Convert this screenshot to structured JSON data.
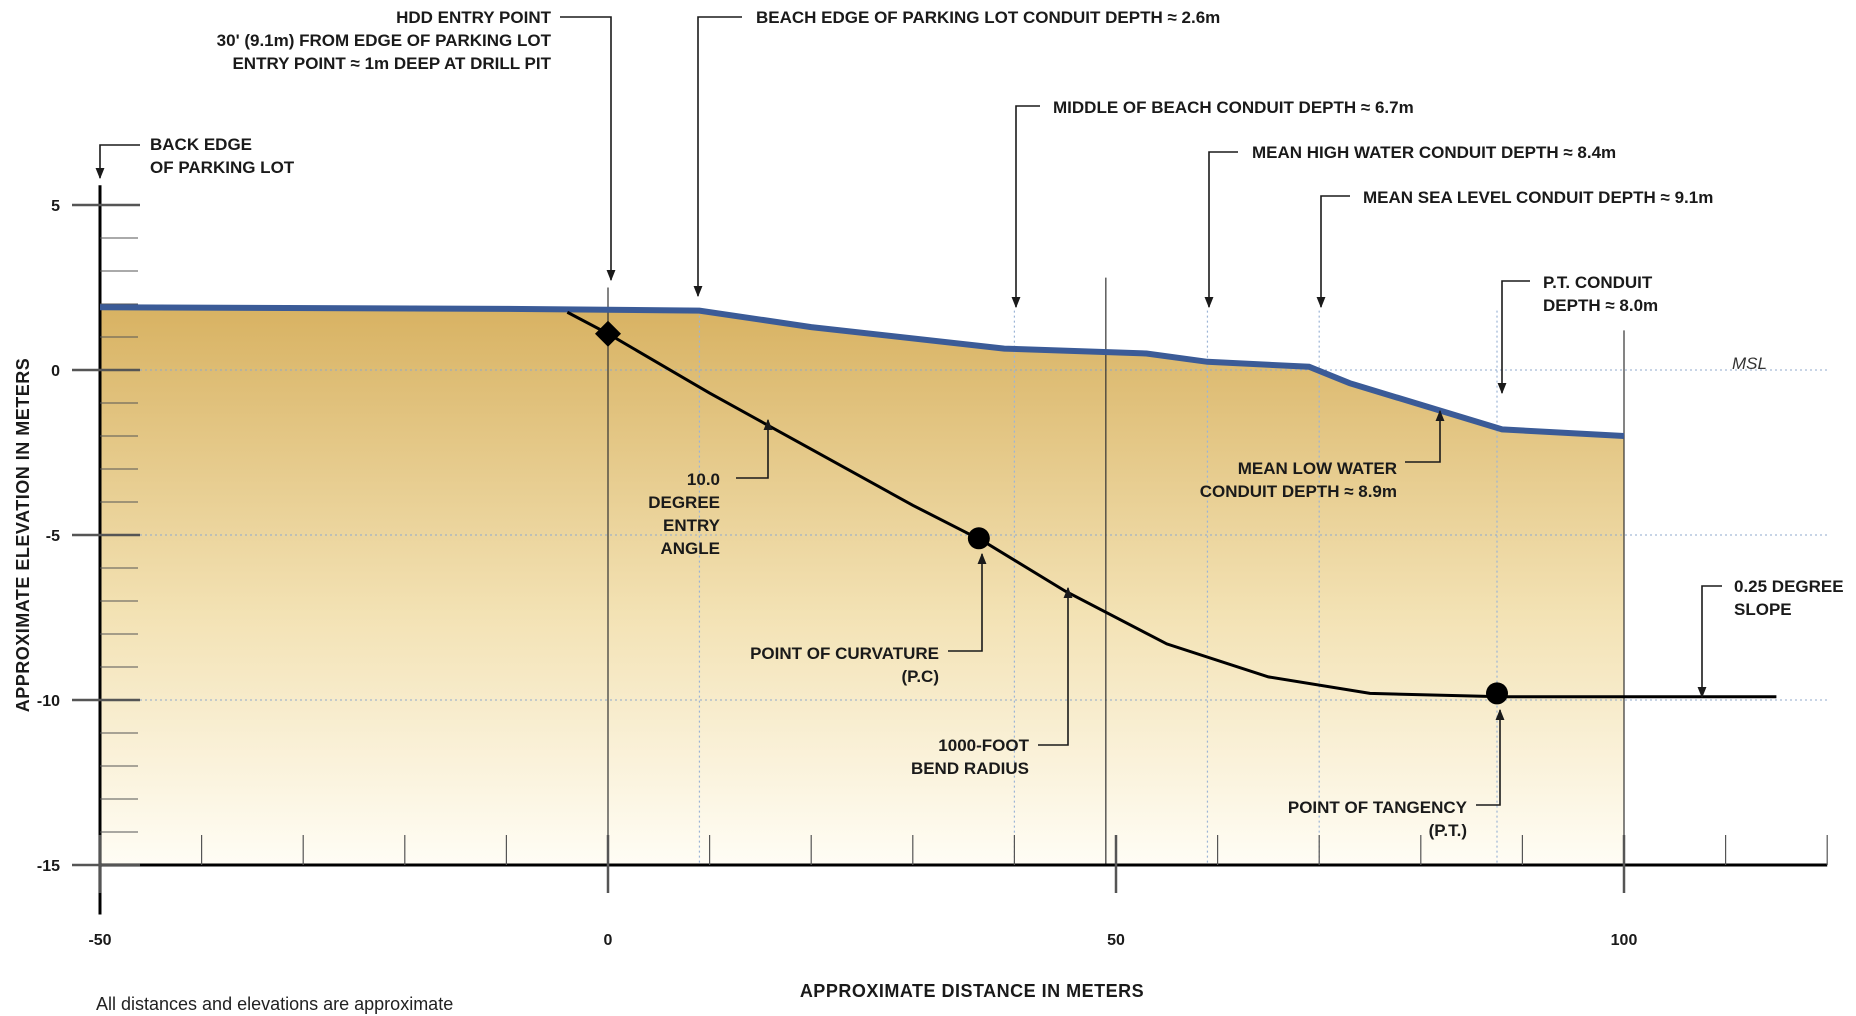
{
  "chart_data": {
    "type": "profile",
    "xlabel": "APPROXIMATE DISTANCE IN METERS",
    "ylabel": "APPROXIMATE ELEVATION IN METERS",
    "xlim": [
      -50,
      120
    ],
    "ylim": [
      -15,
      5
    ],
    "xticks": [
      -50,
      0,
      50,
      100
    ],
    "yticks": [
      5,
      0,
      -5,
      -10,
      -15
    ],
    "ground_profile": {
      "x": [
        -50,
        -10,
        9,
        20,
        39,
        53,
        59,
        69,
        73,
        88,
        100
      ],
      "y": [
        1.9,
        1.85,
        1.8,
        1.3,
        0.65,
        0.5,
        0.25,
        0.1,
        -0.4,
        -1.8,
        -2.0
      ]
    },
    "conduit_path": {
      "x": [
        -4,
        0,
        10,
        20,
        30,
        37,
        45,
        55,
        65,
        75,
        88,
        115
      ],
      "y": [
        1.75,
        1.1,
        -0.7,
        -2.4,
        -4.1,
        -5.2,
        -6.7,
        -8.3,
        -9.3,
        -9.8,
        -9.9,
        -9.9
      ]
    },
    "points": [
      {
        "name": "HDD entry point",
        "x": 0,
        "y": 1.1,
        "marker": "diamond"
      },
      {
        "name": "Point of curvature",
        "x": 36.5,
        "y": -5.1,
        "marker": "circle"
      },
      {
        "name": "Point of tangency",
        "x": 87.5,
        "y": -9.8,
        "marker": "circle"
      }
    ],
    "reference_lines": {
      "vertical_x": [
        0,
        9,
        40,
        49,
        59,
        70,
        87.5,
        100
      ],
      "horizontal_y": [
        0,
        -5,
        -10
      ]
    },
    "colors": {
      "ground_fill_top": "#d8b262",
      "ground_fill_bottom": "#fffdf5",
      "ground_line": "#3b5b97",
      "conduit": "#000000"
    }
  },
  "labels": {
    "hdd_entry": [
      "HDD ENTRY POINT",
      "30' (9.1m) FROM EDGE OF PARKING LOT",
      "ENTRY POINT ≈ 1m DEEP AT DRILL PIT"
    ],
    "beach_edge": "BEACH EDGE OF PARKING LOT CONDUIT DEPTH ≈ 2.6m",
    "back_edge": [
      "BACK EDGE",
      "OF PARKING LOT"
    ],
    "middle_beach": "MIDDLE OF BEACH CONDUIT DEPTH ≈ 6.7m",
    "mean_high": "MEAN HIGH WATER CONDUIT DEPTH ≈ 8.4m",
    "mean_sea": "MEAN SEA LEVEL CONDUIT DEPTH ≈ 9.1m",
    "pt_depth": [
      "P.T. CONDUIT",
      "DEPTH ≈ 8.0m"
    ],
    "msl": "MSL",
    "mean_low": [
      "MEAN LOW WATER",
      "CONDUIT DEPTH ≈ 8.9m"
    ],
    "entry_angle": [
      "10.0",
      "DEGREE",
      "ENTRY",
      "ANGLE"
    ],
    "slope": [
      "0.25 DEGREE",
      "SLOPE"
    ],
    "pc": [
      "POINT OF CURVATURE",
      "(P.C)"
    ],
    "bend": [
      "1000-FOOT",
      "BEND RADIUS"
    ],
    "pt": [
      "POINT OF TANGENCY",
      "(P.T.)"
    ]
  },
  "footnote": "All distances and elevations are approximate"
}
